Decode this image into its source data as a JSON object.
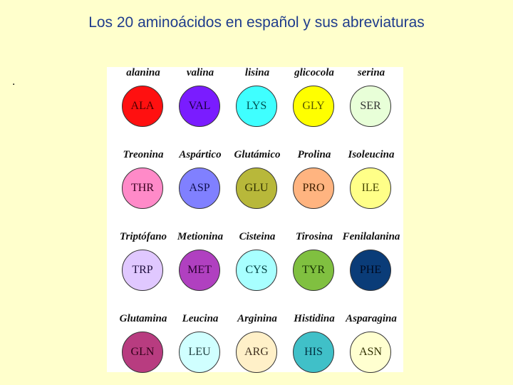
{
  "slide": {
    "title": "Los 20 aminoácidos en español y sus abreviaturas",
    "bullet": "."
  },
  "aminoacids": [
    {
      "name": "alanina",
      "abbr": "ALA",
      "color": "#ff1010",
      "text": "#4a0000"
    },
    {
      "name": "valina",
      "abbr": "VAL",
      "color": "#7a1cff",
      "text": "#1a0040"
    },
    {
      "name": "lisina",
      "abbr": "LYS",
      "color": "#3fffff",
      "text": "#005050"
    },
    {
      "name": "glicocola",
      "abbr": "GLY",
      "color": "#ffff00",
      "text": "#555500"
    },
    {
      "name": "serina",
      "abbr": "SER",
      "color": "#e8ffd8",
      "text": "#333333"
    },
    {
      "name": "Treonina",
      "abbr": "THR",
      "color": "#ff8ac8",
      "text": "#3a0020"
    },
    {
      "name": "Aspártico",
      "abbr": "ASP",
      "color": "#8080ff",
      "text": "#101050"
    },
    {
      "name": "Glutámico",
      "abbr": "GLU",
      "color": "#b8b83a",
      "text": "#303000"
    },
    {
      "name": "Prolina",
      "abbr": "PRO",
      "color": "#ffb480",
      "text": "#402000"
    },
    {
      "name": "Isoleucina",
      "abbr": "ILE",
      "color": "#ffff88",
      "text": "#444400"
    },
    {
      "name": "Triptófano",
      "abbr": "TRP",
      "color": "#e0c8ff",
      "text": "#201040"
    },
    {
      "name": "Metionina",
      "abbr": "MET",
      "color": "#b040c0",
      "text": "#2a0030"
    },
    {
      "name": "Cisteina",
      "abbr": "CYS",
      "color": "#a8ffff",
      "text": "#004040"
    },
    {
      "name": "Tirosina",
      "abbr": "TYR",
      "color": "#80c040",
      "text": "#153000"
    },
    {
      "name": "Fenilalanina",
      "abbr": "PHE",
      "color": "#0a3c78",
      "text": "#000a20"
    },
    {
      "name": "Glutamina",
      "abbr": "GLN",
      "color": "#b83c80",
      "text": "#300018"
    },
    {
      "name": "Leucina",
      "abbr": "LEU",
      "color": "#d0ffff",
      "text": "#204040"
    },
    {
      "name": "Arginina",
      "abbr": "ARG",
      "color": "#fff0c8",
      "text": "#403020"
    },
    {
      "name": "Histidina",
      "abbr": "HIS",
      "color": "#40c0c8",
      "text": "#003040"
    },
    {
      "name": "Asparagina",
      "abbr": "ASN",
      "color": "#ffffd0",
      "text": "#303000"
    }
  ]
}
